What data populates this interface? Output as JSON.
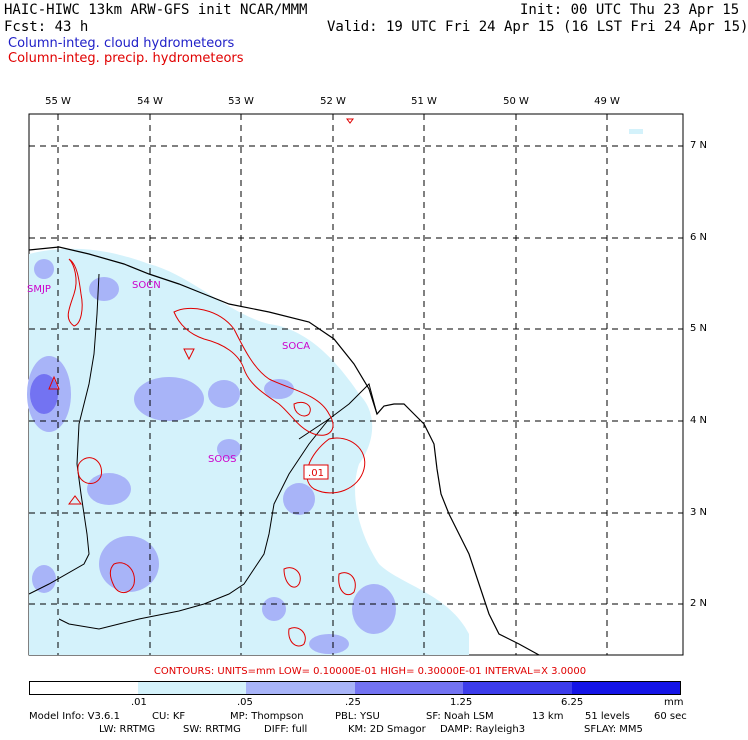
{
  "header": {
    "line1_left": "HAIC-HIWC 13km ARW-GFS init   NCAR/MMM",
    "line1_right": "Init: 00 UTC Thu 23 Apr 15",
    "line2_left": "Fcst:   43 h",
    "line2_right": "Valid: 19 UTC Fri 24 Apr 15 (16 LST Fri 24 Apr 15)",
    "line3": "Column-integ. cloud hydrometeors",
    "line4": "Column-integ. precip. hydrometeors"
  },
  "axes": {
    "longitudes": [
      "55 W",
      "54 W",
      "53 W",
      "52 W",
      "51 W",
      "50 W",
      "49 W"
    ],
    "latitudes": [
      "7 N",
      "6 N",
      "5 N",
      "4 N",
      "3 N",
      "2 N"
    ]
  },
  "stations": [
    "SMJP",
    "SOCN",
    "SOCA",
    "SOOS"
  ],
  "contour_label": ".01",
  "contours_text": "CONTOURS:  UNITS=mm  LOW= 0.10000E-01  HIGH= 0.30000E-01  INTERVAL=X  3.0000",
  "scale": {
    "labels": [
      ".01",
      ".05",
      ".25",
      "1.25",
      "6.25",
      "mm"
    ],
    "colors": [
      "#ffffff",
      "#d4f2fb",
      "#a8b4f8",
      "#7373f2",
      "#3c3ceb",
      "#1414e6"
    ]
  },
  "model_info": {
    "line1": [
      "Model Info: V3.6.1",
      "CU: KF",
      "MP: Thompson",
      "PBL: YSU",
      "SF: Noah LSM",
      "13 km",
      "51 levels",
      "60 sec"
    ],
    "line2": [
      "LW: RRTMG",
      "SW: RRTMG",
      "DIFF: full",
      "KM: 2D Smagor",
      "DAMP: Rayleigh3",
      "SFLAY: MM5"
    ]
  }
}
